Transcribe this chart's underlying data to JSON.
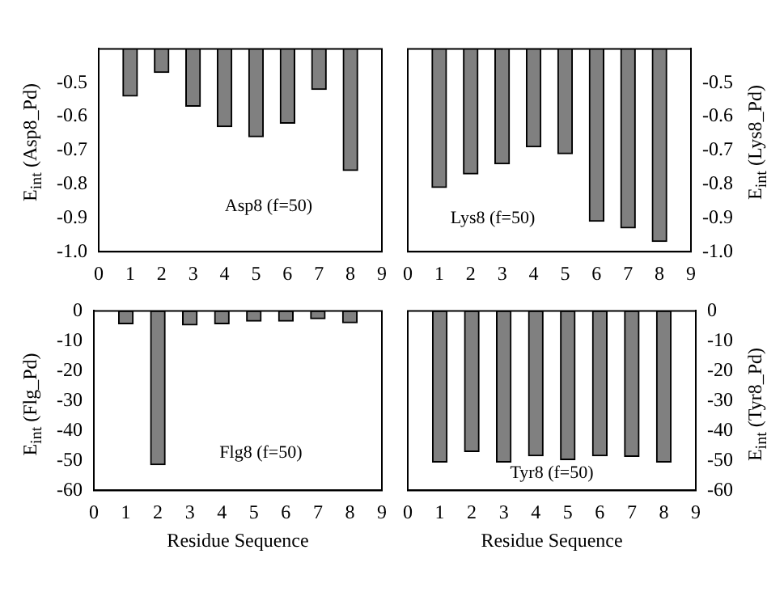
{
  "chart_data": [
    {
      "type": "bar",
      "x": [
        1,
        2,
        3,
        4,
        5,
        6,
        7,
        8
      ],
      "values": [
        -0.54,
        -0.47,
        -0.57,
        -0.63,
        -0.66,
        -0.62,
        -0.52,
        -0.76
      ],
      "color": "#808080",
      "xlim": [
        0,
        9
      ],
      "xticks": [
        0,
        1,
        2,
        3,
        4,
        5,
        6,
        7,
        8,
        9
      ],
      "ylim": [
        -1.0,
        -0.4
      ],
      "yticks": [
        {
          "value": -1.0,
          "label": "-1.0"
        },
        -0.9,
        -0.8,
        -0.7,
        -0.6,
        -0.5
      ],
      "ylabel": "E$_{int}$ (Asp8_Pd)",
      "annotations": [
        "Asp8 (f=50)"
      ]
    },
    {
      "type": "bar",
      "x": [
        1,
        2,
        3,
        4,
        5,
        6,
        7,
        8
      ],
      "values": [
        -0.81,
        -0.77,
        -0.74,
        -0.69,
        -0.71,
        -0.91,
        -0.93,
        -0.97
      ],
      "color": "#808080",
      "xlim": [
        0,
        9
      ],
      "xticks": [
        0,
        1,
        2,
        3,
        4,
        5,
        6,
        7,
        8,
        9
      ],
      "ylim": [
        -1.0,
        -0.4
      ],
      "yticks": [
        {
          "value": -1.0,
          "label": "-1.0"
        },
        -0.9,
        -0.8,
        -0.7,
        -0.6,
        -0.5
      ],
      "ylabel": "E$_{int}$ (Lys8_Pd)",
      "annotations": [
        "Lys8 (f=50)"
      ]
    },
    {
      "type": "bar",
      "x": [
        1,
        2,
        3,
        4,
        5,
        6,
        7,
        8
      ],
      "values": [
        -4.3,
        -51.4,
        -4.7,
        -4.3,
        -3.4,
        -3.4,
        -2.6,
        -4.0
      ],
      "color": "#808080",
      "xlim": [
        0,
        9
      ],
      "xticks": [
        0,
        1,
        2,
        3,
        4,
        5,
        6,
        7,
        8,
        9
      ],
      "ylim": [
        -60,
        0
      ],
      "yticks": [
        -60,
        -50,
        -40,
        -30,
        -20,
        -10,
        0
      ],
      "xlabel": "Residue Sequence",
      "ylabel": "E$_{int}$ (Flg_Pd)",
      "annotations": [
        "Flg8 (f=50)"
      ]
    },
    {
      "type": "bar",
      "x": [
        1,
        2,
        3,
        4,
        5,
        6,
        7,
        8
      ],
      "values": [
        -50.5,
        -47,
        -50.5,
        -48.4,
        -49.7,
        -48.4,
        -48.6,
        -50.5
      ],
      "color": "#808080",
      "xlim": [
        0,
        9
      ],
      "xticks": [
        0,
        1,
        2,
        3,
        4,
        5,
        6,
        7,
        8,
        9
      ],
      "ylim": [
        -60,
        0
      ],
      "yticks": [
        -60,
        -50,
        -40,
        -30,
        -20,
        -10,
        0
      ],
      "xlabel": "Residue Sequence",
      "ylabel": "E$_{int}$ (Tyr8_Pd)",
      "annotations": [
        "Tyr8 (f=50)"
      ]
    }
  ]
}
